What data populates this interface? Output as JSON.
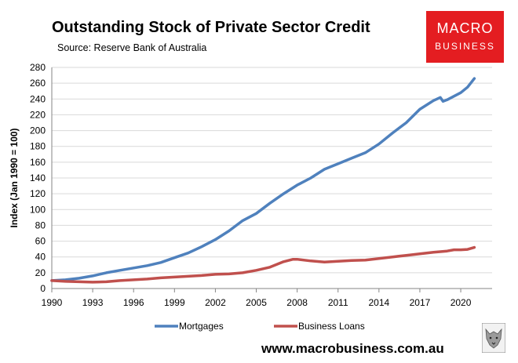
{
  "header": {
    "title": "Outstanding Stock of Private Sector Credit",
    "subtitle": "Source: Reserve Bank of Australia"
  },
  "logo": {
    "line1": "MACRO",
    "line2": "BUSINESS",
    "color": "#e41d21"
  },
  "footer": {
    "url": "www.macrobusiness.com.au"
  },
  "chart_data": {
    "type": "line",
    "title": "Outstanding Stock of Private Sector Credit",
    "xlabel": "",
    "ylabel": "Index (Jan 1990 = 100)",
    "xlim": [
      1990,
      2022.3
    ],
    "ylim": [
      0,
      280
    ],
    "x_ticks": [
      "1990",
      "1993",
      "1996",
      "1999",
      "2002",
      "2005",
      "2008",
      "2011",
      "2014",
      "2017",
      "2020"
    ],
    "y_ticks": [
      "0",
      "20",
      "40",
      "60",
      "80",
      "100",
      "120",
      "140",
      "160",
      "180",
      "200",
      "220",
      "240",
      "260",
      "280"
    ],
    "grid": "horizontal",
    "legend": "bottom",
    "series": [
      {
        "name": "Mortgages",
        "color": "#4f81bd",
        "points": [
          [
            1990,
            10
          ],
          [
            1991,
            11
          ],
          [
            1992,
            13
          ],
          [
            1993,
            16
          ],
          [
            1994,
            20
          ],
          [
            1995,
            23
          ],
          [
            1996,
            26
          ],
          [
            1997,
            29
          ],
          [
            1998,
            33
          ],
          [
            1999,
            39
          ],
          [
            2000,
            45
          ],
          [
            2001,
            53
          ],
          [
            2002,
            62
          ],
          [
            2003,
            73
          ],
          [
            2004,
            86
          ],
          [
            2005,
            95
          ],
          [
            2006,
            108
          ],
          [
            2007,
            120
          ],
          [
            2008,
            131
          ],
          [
            2009,
            140
          ],
          [
            2010,
            151
          ],
          [
            2011,
            158
          ],
          [
            2012,
            165
          ],
          [
            2013,
            172
          ],
          [
            2014,
            183
          ],
          [
            2015,
            197
          ],
          [
            2016,
            210
          ],
          [
            2017,
            227
          ],
          [
            2018,
            238
          ],
          [
            2018.5,
            242
          ],
          [
            2018.7,
            237
          ],
          [
            2019,
            239
          ],
          [
            2020,
            248
          ],
          [
            2020.5,
            255
          ],
          [
            2021,
            266
          ]
        ]
      },
      {
        "name": "Business Loans",
        "color": "#c0504d",
        "points": [
          [
            1990,
            10
          ],
          [
            1991,
            9
          ],
          [
            1992,
            8.5
          ],
          [
            1993,
            8
          ],
          [
            1994,
            8.5
          ],
          [
            1995,
            10
          ],
          [
            1996,
            11
          ],
          [
            1997,
            12
          ],
          [
            1998,
            13.5
          ],
          [
            1999,
            14.5
          ],
          [
            2000,
            15.5
          ],
          [
            2001,
            16.5
          ],
          [
            2002,
            18
          ],
          [
            2003,
            18.5
          ],
          [
            2004,
            20
          ],
          [
            2005,
            23
          ],
          [
            2006,
            27
          ],
          [
            2007,
            34
          ],
          [
            2007.7,
            37
          ],
          [
            2008,
            37
          ],
          [
            2009,
            35
          ],
          [
            2010,
            33.5
          ],
          [
            2011,
            34.5
          ],
          [
            2012,
            35.5
          ],
          [
            2013,
            36
          ],
          [
            2014,
            38
          ],
          [
            2015,
            40
          ],
          [
            2016,
            42
          ],
          [
            2017,
            44
          ],
          [
            2018,
            46
          ],
          [
            2019,
            47.5
          ],
          [
            2019.5,
            49
          ],
          [
            2020,
            49
          ],
          [
            2020.5,
            49.5
          ],
          [
            2021,
            52
          ]
        ]
      }
    ]
  }
}
